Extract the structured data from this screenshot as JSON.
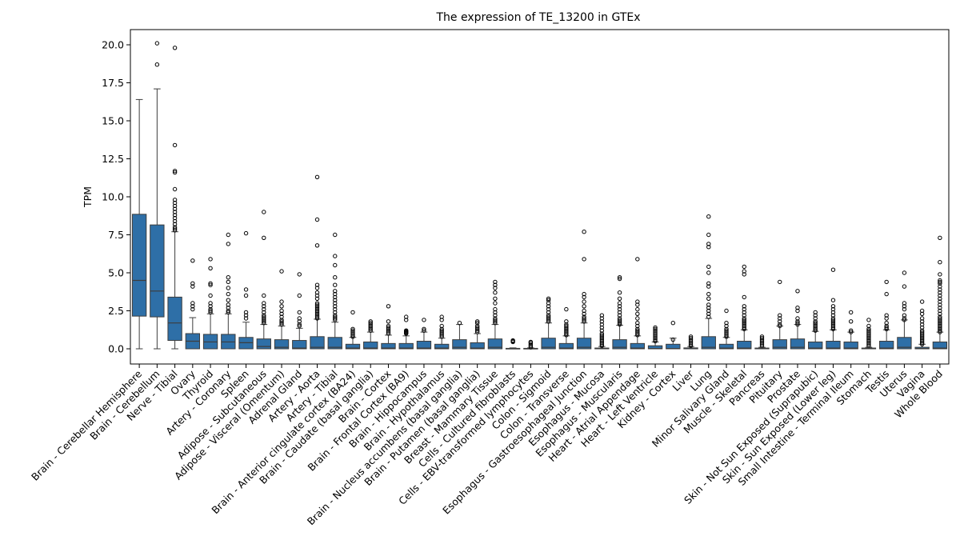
{
  "chart_data": {
    "type": "box",
    "title": "The expression of TE_13200 in GTEx",
    "xlabel": "",
    "ylabel": "TPM",
    "ylim": [
      -1,
      21
    ],
    "yticks": [
      0.0,
      2.5,
      5.0,
      7.5,
      10.0,
      12.5,
      15.0,
      17.5,
      20.0
    ],
    "ytick_labels": [
      "0.0",
      "2.5",
      "5.0",
      "7.5",
      "10.0",
      "12.5",
      "15.0",
      "17.5",
      "20.0"
    ],
    "grid": false,
    "box_color": "#2e6fa7",
    "categories": [
      "Brain - Cerebellar Hemisphere",
      "Brain - Cerebellum",
      "Nerve - Tibial",
      "Ovary",
      "Thyroid",
      "Artery - Coronary",
      "Spleen",
      "Adipose - Subcutaneous",
      "Adipose - Visceral (Omentum)",
      "Adrenal Gland",
      "Artery - Aorta",
      "Artery - Tibial",
      "Brain - Anterior cingulate cortex (BA24)",
      "Brain - Caudate (basal ganglia)",
      "Brain - Cortex",
      "Brain - Frontal Cortex (BA9)",
      "Brain - Hippocampus",
      "Brain - Hypothalamus",
      "Brain - Nucleus accumbens (basal ganglia)",
      "Brain - Putamen (basal ganglia)",
      "Breast - Mammary Tissue",
      "Cells - Cultured fibroblasts",
      "Cells - EBV-transformed lymphocytes",
      "Colon - Sigmoid",
      "Colon - Transverse",
      "Esophagus - Gastroesophageal Junction",
      "Esophagus - Mucosa",
      "Esophagus - Muscularis",
      "Heart - Atrial Appendage",
      "Heart - Left Ventricle",
      "Kidney - Cortex",
      "Liver",
      "Lung",
      "Minor Salivary Gland",
      "Muscle - Skeletal",
      "Pancreas",
      "Pituitary",
      "Prostate",
      "Skin - Not Sun Exposed (Suprapubic)",
      "Skin - Sun Exposed (Lower leg)",
      "Small Intestine - Terminal Ileum",
      "Stomach",
      "Testis",
      "Uterus",
      "Vagina",
      "Whole Blood"
    ],
    "boxes": [
      {
        "min": 0,
        "q1": 2.15,
        "median": 4.5,
        "q3": 8.85,
        "max": 16.4
      },
      {
        "min": 0,
        "q1": 2.1,
        "median": 3.8,
        "q3": 8.15,
        "max": 17.1
      },
      {
        "min": 0,
        "q1": 0.55,
        "median": 1.7,
        "q3": 3.4,
        "max": 7.7
      },
      {
        "min": 0,
        "q1": 0,
        "median": 0.5,
        "q3": 1.0,
        "max": 2.05
      },
      {
        "min": 0,
        "q1": 0,
        "median": 0.45,
        "q3": 0.95,
        "max": 2.3
      },
      {
        "min": 0,
        "q1": 0,
        "median": 0.45,
        "q3": 0.95,
        "max": 2.3
      },
      {
        "min": 0,
        "q1": 0,
        "median": 0.4,
        "q3": 0.75,
        "max": 1.75
      },
      {
        "min": 0,
        "q1": 0,
        "median": 0.15,
        "q3": 0.65,
        "max": 1.6
      },
      {
        "min": 0,
        "q1": 0,
        "median": 0.1,
        "q3": 0.6,
        "max": 1.5
      },
      {
        "min": 0,
        "q1": 0,
        "median": 0.05,
        "q3": 0.55,
        "max": 1.35
      },
      {
        "min": 0,
        "q1": 0,
        "median": 0.1,
        "q3": 0.8,
        "max": 1.95
      },
      {
        "min": 0,
        "q1": 0,
        "median": 0.1,
        "q3": 0.75,
        "max": 1.75
      },
      {
        "min": 0,
        "q1": 0,
        "median": 0.05,
        "q3": 0.3,
        "max": 0.75
      },
      {
        "min": 0,
        "q1": 0,
        "median": 0.05,
        "q3": 0.45,
        "max": 1.1
      },
      {
        "min": 0,
        "q1": 0,
        "median": 0.05,
        "q3": 0.35,
        "max": 0.9
      },
      {
        "min": 0,
        "q1": 0,
        "median": 0.05,
        "q3": 0.35,
        "max": 0.85
      },
      {
        "min": 0,
        "q1": 0,
        "median": 0.05,
        "q3": 0.5,
        "max": 1.1
      },
      {
        "min": 0,
        "q1": 0,
        "median": 0.05,
        "q3": 0.3,
        "max": 0.7
      },
      {
        "min": 0,
        "q1": 0,
        "median": 0.1,
        "q3": 0.6,
        "max": 1.6
      },
      {
        "min": 0,
        "q1": 0,
        "median": 0.05,
        "q3": 0.4,
        "max": 1.0
      },
      {
        "min": 0,
        "q1": 0,
        "median": 0.1,
        "q3": 0.65,
        "max": 1.6
      },
      {
        "min": 0,
        "q1": 0,
        "median": 0.01,
        "q3": 0.03,
        "max": 0.06
      },
      {
        "min": 0,
        "q1": 0,
        "median": 0.01,
        "q3": 0.03,
        "max": 0.06
      },
      {
        "min": 0,
        "q1": 0,
        "median": 0.1,
        "q3": 0.7,
        "max": 1.7
      },
      {
        "min": 0,
        "q1": 0,
        "median": 0.05,
        "q3": 0.35,
        "max": 0.85
      },
      {
        "min": 0,
        "q1": 0,
        "median": 0.1,
        "q3": 0.7,
        "max": 1.7
      },
      {
        "min": 0,
        "q1": 0,
        "median": 0.01,
        "q3": 0.05,
        "max": 0.15
      },
      {
        "min": 0,
        "q1": 0,
        "median": 0.1,
        "q3": 0.6,
        "max": 1.55
      },
      {
        "min": 0,
        "q1": 0,
        "median": 0.05,
        "q3": 0.35,
        "max": 0.85
      },
      {
        "min": 0,
        "q1": 0,
        "median": 0.02,
        "q3": 0.2,
        "max": 0.45
      },
      {
        "min": 0,
        "q1": 0,
        "median": 0.02,
        "q3": 0.3,
        "max": 0.7
      },
      {
        "min": 0,
        "q1": 0,
        "median": 0.01,
        "q3": 0.06,
        "max": 0.15
      },
      {
        "min": 0,
        "q1": 0,
        "median": 0.1,
        "q3": 0.8,
        "max": 2.0
      },
      {
        "min": 0,
        "q1": 0,
        "median": 0.05,
        "q3": 0.3,
        "max": 0.75
      },
      {
        "min": 0,
        "q1": 0,
        "median": 0.05,
        "q3": 0.5,
        "max": 1.25
      },
      {
        "min": 0,
        "q1": 0,
        "median": 0.01,
        "q3": 0.05,
        "max": 0.1
      },
      {
        "min": 0,
        "q1": 0,
        "median": 0.1,
        "q3": 0.6,
        "max": 1.5
      },
      {
        "min": 0,
        "q1": 0,
        "median": 0.1,
        "q3": 0.65,
        "max": 1.6
      },
      {
        "min": 0,
        "q1": 0,
        "median": 0.05,
        "q3": 0.45,
        "max": 1.15
      },
      {
        "min": 0,
        "q1": 0,
        "median": 0.05,
        "q3": 0.5,
        "max": 1.25
      },
      {
        "min": 0,
        "q1": 0,
        "median": 0.05,
        "q3": 0.45,
        "max": 1.1
      },
      {
        "min": 0,
        "q1": 0,
        "median": 0.01,
        "q3": 0.05,
        "max": 0.1
      },
      {
        "min": 0,
        "q1": 0,
        "median": 0.05,
        "q3": 0.5,
        "max": 1.25
      },
      {
        "min": 0,
        "q1": 0,
        "median": 0.1,
        "q3": 0.75,
        "max": 1.9
      },
      {
        "min": 0,
        "q1": 0,
        "median": 0.02,
        "q3": 0.1,
        "max": 0.3
      },
      {
        "min": 0,
        "q1": 0,
        "median": 0.05,
        "q3": 0.45,
        "max": 1.1
      }
    ],
    "outliers": [
      [],
      [
        18.7,
        20.1
      ],
      [
        7.8,
        7.9,
        8.0,
        8.2,
        8.4,
        8.6,
        8.8,
        9.0,
        9.2,
        9.4,
        9.6,
        9.8,
        10.5,
        11.6,
        11.7,
        13.4,
        19.8
      ],
      [
        2.6,
        2.8,
        3.0,
        4.1,
        4.3,
        5.8
      ],
      [
        2.4,
        2.5,
        2.6,
        2.8,
        3.0,
        3.5,
        4.2,
        4.3,
        5.3,
        5.9
      ],
      [
        2.4,
        2.5,
        2.7,
        2.9,
        3.2,
        3.6,
        4.0,
        4.4,
        4.7,
        6.9,
        7.5
      ],
      [
        2.0,
        2.2,
        2.4,
        3.5,
        3.9,
        7.6
      ],
      [
        1.7,
        1.8,
        1.9,
        2.0,
        2.1,
        2.2,
        2.4,
        2.6,
        2.8,
        3.0,
        3.5,
        7.3,
        9.0
      ],
      [
        1.6,
        1.7,
        1.8,
        1.9,
        2.1,
        2.3,
        2.5,
        2.8,
        3.1,
        5.1
      ],
      [
        1.5,
        1.6,
        1.8,
        2.0,
        2.4,
        3.5,
        4.9
      ],
      [
        2.0,
        2.1,
        2.2,
        2.3,
        2.4,
        2.5,
        2.6,
        2.7,
        2.8,
        2.9,
        3.0,
        3.3,
        3.5,
        3.7,
        4.0,
        4.2,
        6.8,
        8.5,
        11.3
      ],
      [
        1.9,
        2.0,
        2.1,
        2.2,
        2.4,
        2.6,
        2.8,
        3.0,
        3.2,
        3.4,
        3.6,
        3.8,
        4.2,
        4.7,
        5.5,
        6.1,
        7.5
      ],
      [
        0.8,
        0.9,
        1.0,
        1.1,
        1.2,
        1.3,
        2.4
      ],
      [
        1.2,
        1.3,
        1.4,
        1.5,
        1.6,
        1.7,
        1.8
      ],
      [
        1.0,
        1.1,
        1.2,
        1.3,
        1.4,
        1.5,
        1.8,
        2.8
      ],
      [
        1.0,
        1.05,
        1.1,
        1.15,
        1.2,
        1.9,
        2.1
      ],
      [
        1.2,
        1.3,
        1.9
      ],
      [
        0.8,
        0.9,
        1.0,
        1.1,
        1.2,
        1.3,
        1.5,
        1.9,
        2.1
      ],
      [
        1.7
      ],
      [
        1.1,
        1.2,
        1.3,
        1.4,
        1.5,
        1.7,
        1.8
      ],
      [
        1.7,
        1.8,
        1.9,
        2.0,
        2.2,
        2.4,
        2.6,
        3.0,
        3.3,
        3.7,
        4.0,
        4.2,
        4.4
      ],
      [
        0.45,
        0.5,
        0.55
      ],
      [
        0.1,
        0.2,
        0.3,
        0.4,
        0.45
      ],
      [
        1.8,
        1.9,
        2.0,
        2.1,
        2.2,
        2.4,
        2.6,
        2.8,
        3.0,
        3.2,
        3.3
      ],
      [
        0.9,
        1.0,
        1.1,
        1.2,
        1.3,
        1.4,
        1.5,
        1.6,
        1.8,
        2.6
      ],
      [
        1.8,
        1.9,
        2.0,
        2.1,
        2.3,
        2.5,
        2.8,
        3.1,
        3.4,
        3.6,
        5.9,
        7.7
      ],
      [
        0.2,
        0.3,
        0.4,
        0.5,
        0.6,
        0.7,
        0.8,
        0.9,
        1.0,
        1.2,
        1.4,
        1.6,
        1.8,
        2.0,
        2.2
      ],
      [
        1.6,
        1.7,
        1.8,
        1.9,
        2.0,
        2.2,
        2.4,
        2.6,
        2.8,
        3.0,
        3.3,
        3.7,
        4.6,
        4.7
      ],
      [
        0.9,
        1.0,
        1.1,
        1.2,
        1.3,
        1.5,
        1.7,
        2.0,
        2.3,
        2.6,
        2.9,
        3.1,
        5.9
      ],
      [
        0.5,
        0.6,
        0.7,
        0.8,
        0.9,
        1.0,
        1.1,
        1.2,
        1.3,
        1.4
      ],
      [
        0.6,
        1.7
      ],
      [
        0.2,
        0.3,
        0.4,
        0.5,
        0.6,
        0.7,
        0.8
      ],
      [
        2.1,
        2.3,
        2.5,
        2.7,
        2.9,
        3.3,
        3.6,
        4.1,
        4.3,
        5.0,
        5.4,
        6.7,
        6.9,
        7.5,
        8.7
      ],
      [
        0.8,
        0.9,
        1.0,
        1.1,
        1.2,
        1.3,
        1.5,
        1.7,
        2.5
      ],
      [
        1.3,
        1.4,
        1.5,
        1.6,
        1.7,
        1.8,
        1.9,
        2.0,
        2.2,
        2.4,
        2.6,
        2.8,
        3.4,
        4.9,
        5.1,
        5.4
      ],
      [
        0.2,
        0.3,
        0.4,
        0.5,
        0.6,
        0.7,
        0.8
      ],
      [
        1.5,
        1.6,
        1.8,
        2.0,
        2.2,
        4.4
      ],
      [
        1.6,
        1.7,
        1.8,
        2.0,
        2.5,
        2.7,
        3.8
      ],
      [
        1.2,
        1.3,
        1.4,
        1.5,
        1.6,
        1.7,
        1.8,
        2.0,
        2.2,
        2.4
      ],
      [
        1.3,
        1.4,
        1.5,
        1.6,
        1.7,
        1.8,
        1.9,
        2.0,
        2.2,
        2.4,
        2.6,
        2.8,
        3.2,
        5.2
      ],
      [
        1.1,
        1.2,
        1.8,
        2.4
      ],
      [
        0.2,
        0.3,
        0.4,
        0.5,
        0.6,
        0.7,
        0.8,
        0.9,
        1.0,
        1.1,
        1.2,
        1.3,
        1.5,
        1.9
      ],
      [
        1.3,
        1.4,
        1.5,
        1.7,
        2.0,
        2.2,
        3.6,
        4.4
      ],
      [
        1.9,
        2.0,
        2.2,
        2.6,
        2.8,
        3.0,
        4.1,
        5.0
      ],
      [
        0.3,
        0.4,
        0.5,
        0.6,
        0.7,
        0.8,
        0.9,
        1.0,
        1.1,
        1.2,
        1.4,
        1.6,
        1.8,
        2.0,
        2.3,
        2.5,
        3.1
      ],
      [
        1.1,
        1.2,
        1.3,
        1.4,
        1.5,
        1.6,
        1.7,
        1.8,
        1.9,
        2.0,
        2.1,
        2.3,
        2.5,
        2.7,
        2.9,
        3.1,
        3.3,
        3.5,
        3.7,
        3.9,
        4.1,
        4.3,
        4.4,
        4.5,
        4.9,
        5.7,
        7.3
      ]
    ]
  }
}
